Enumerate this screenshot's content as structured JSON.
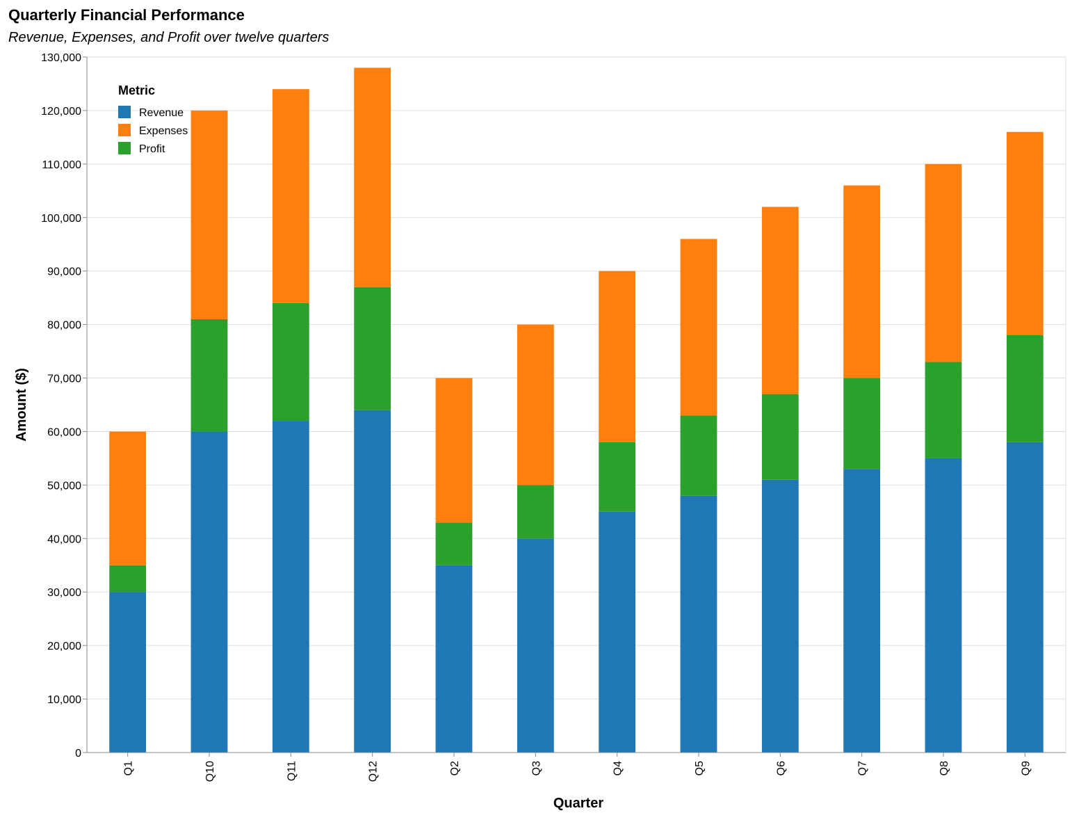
{
  "chart_data": {
    "type": "bar",
    "stacked": true,
    "title": "Quarterly Financial Performance",
    "subtitle": "Revenue, Expenses, and Profit over twelve quarters",
    "xlabel": "Quarter",
    "ylabel": "Amount ($)",
    "ylim": [
      0,
      130000
    ],
    "yticks": [
      0,
      10000,
      20000,
      30000,
      40000,
      50000,
      60000,
      70000,
      80000,
      90000,
      100000,
      110000,
      120000,
      130000
    ],
    "grid": true,
    "legend": {
      "title": "Metric",
      "position": "top-left"
    },
    "categories": [
      "Q1",
      "Q10",
      "Q11",
      "Q12",
      "Q2",
      "Q3",
      "Q4",
      "Q5",
      "Q6",
      "Q7",
      "Q8",
      "Q9"
    ],
    "series": [
      {
        "name": "Revenue",
        "color": "#1f77b4",
        "values": [
          30000,
          60000,
          62000,
          64000,
          35000,
          40000,
          45000,
          48000,
          51000,
          53000,
          55000,
          58000
        ]
      },
      {
        "name": "Profit",
        "color": "#2ca02c",
        "values": [
          5000,
          21000,
          22000,
          23000,
          8000,
          10000,
          13000,
          15000,
          16000,
          17000,
          18000,
          20000
        ]
      },
      {
        "name": "Expenses",
        "color": "#ff7f0e",
        "values": [
          25000,
          39000,
          40000,
          41000,
          27000,
          30000,
          32000,
          33000,
          35000,
          36000,
          37000,
          38000
        ]
      }
    ],
    "legend_order": [
      "Revenue",
      "Expenses",
      "Profit"
    ]
  },
  "colors": {
    "grid": "#dddddd",
    "axis": "#888888"
  }
}
